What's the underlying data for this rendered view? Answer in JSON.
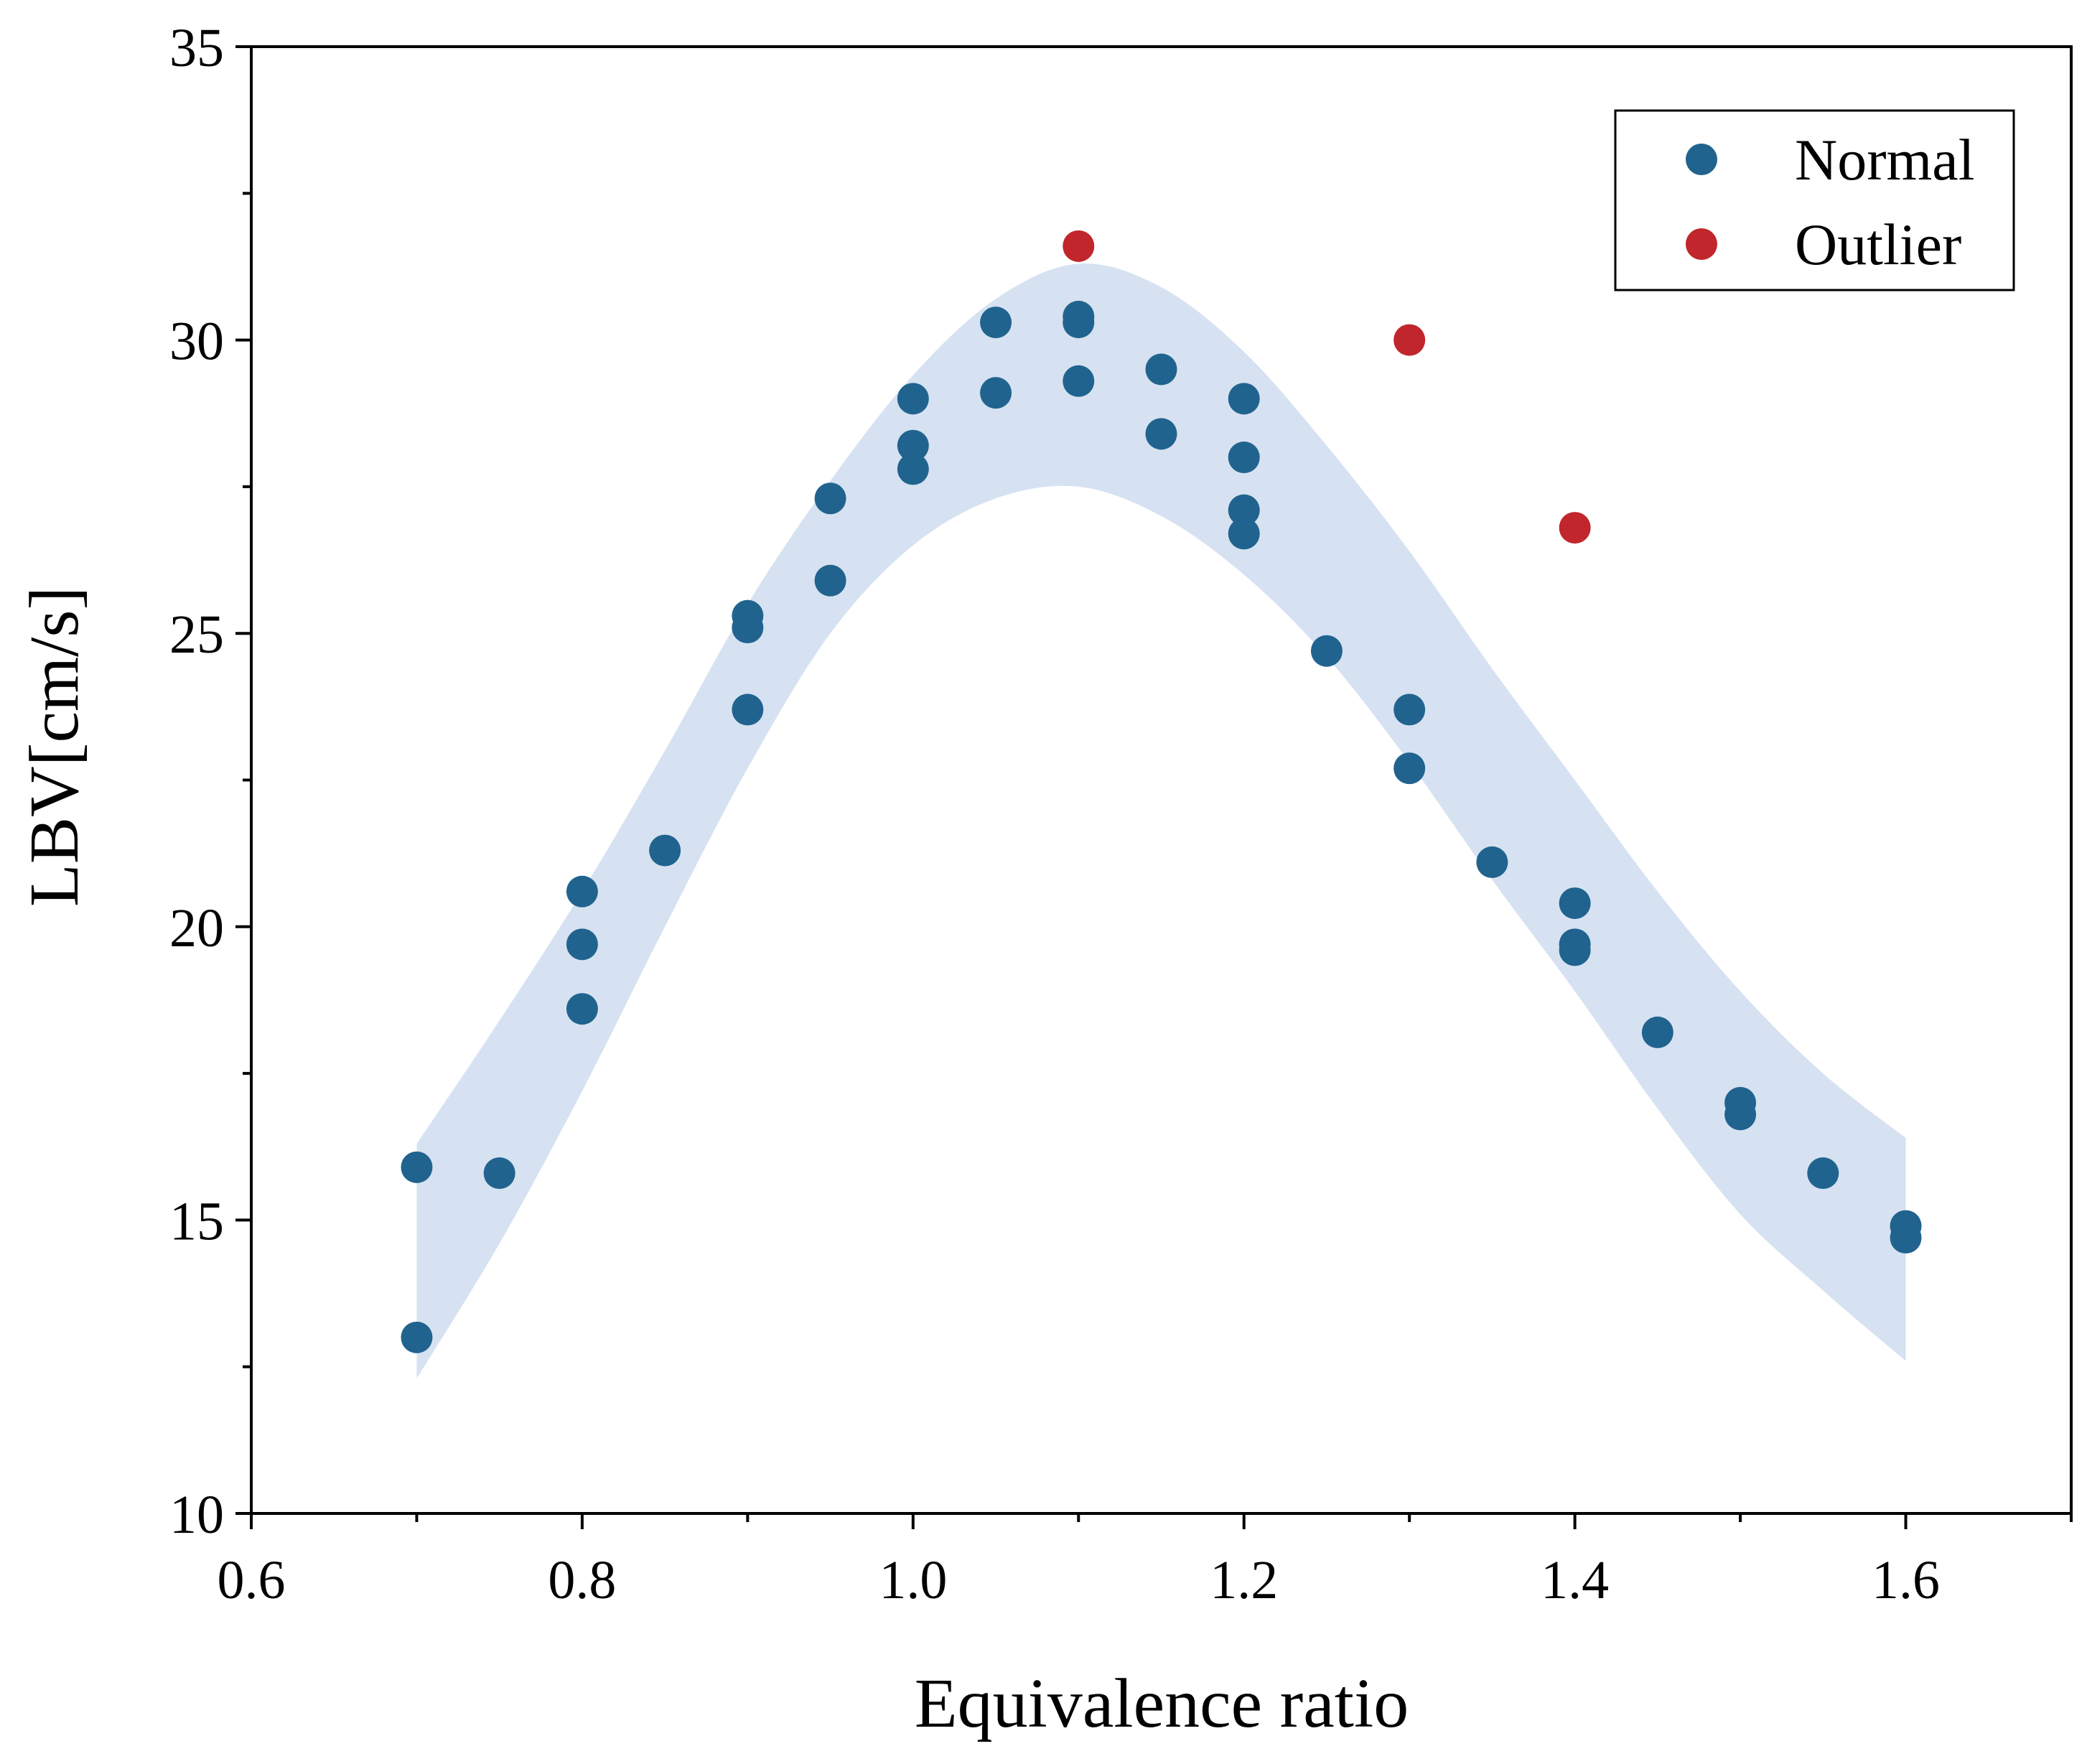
{
  "chart_data": {
    "type": "scatter",
    "title": "",
    "xlabel": "Equivalence ratio",
    "ylabel": "LBV[cm/s]",
    "xlim": [
      0.6,
      1.7
    ],
    "ylim": [
      10,
      35
    ],
    "xticks": [
      0.6,
      0.8,
      1.0,
      1.2,
      1.4,
      1.6
    ],
    "xtick_labels": [
      "0.6",
      "0.8",
      "1.0",
      "1.2",
      "1.4",
      "1.6"
    ],
    "yticks": [
      10,
      15,
      20,
      25,
      30,
      35
    ],
    "ytick_labels": [
      "10",
      "15",
      "20",
      "25",
      "30",
      "35"
    ],
    "grid": false,
    "legend_position": "top-right",
    "colors": {
      "normal": "#21638f",
      "outlier": "#c0262b",
      "band": "#d6e2f1"
    },
    "series": [
      {
        "name": "Normal",
        "color": "#21638f",
        "points": [
          [
            0.7,
            15.9
          ],
          [
            0.7,
            13.0
          ],
          [
            0.75,
            15.8
          ],
          [
            0.8,
            20.6
          ],
          [
            0.8,
            19.7
          ],
          [
            0.8,
            18.6
          ],
          [
            0.85,
            21.3
          ],
          [
            0.9,
            25.3
          ],
          [
            0.9,
            25.1
          ],
          [
            0.9,
            23.7
          ],
          [
            0.95,
            27.3
          ],
          [
            0.95,
            25.9
          ],
          [
            1.0,
            29.0
          ],
          [
            1.0,
            28.2
          ],
          [
            1.0,
            27.8
          ],
          [
            1.05,
            30.3
          ],
          [
            1.05,
            29.1
          ],
          [
            1.1,
            30.4
          ],
          [
            1.1,
            30.3
          ],
          [
            1.1,
            29.3
          ],
          [
            1.15,
            29.5
          ],
          [
            1.15,
            28.4
          ],
          [
            1.2,
            29.0
          ],
          [
            1.2,
            28.0
          ],
          [
            1.2,
            27.1
          ],
          [
            1.2,
            26.7
          ],
          [
            1.25,
            24.7
          ],
          [
            1.3,
            23.7
          ],
          [
            1.3,
            22.7
          ],
          [
            1.35,
            21.1
          ],
          [
            1.4,
            20.4
          ],
          [
            1.4,
            19.7
          ],
          [
            1.4,
            19.6
          ],
          [
            1.45,
            18.2
          ],
          [
            1.5,
            17.0
          ],
          [
            1.5,
            16.8
          ],
          [
            1.55,
            15.8
          ],
          [
            1.6,
            14.9
          ],
          [
            1.6,
            14.7
          ]
        ]
      },
      {
        "name": "Outlier",
        "color": "#c0262b",
        "points": [
          [
            1.1,
            31.6
          ],
          [
            1.3,
            30.0
          ],
          [
            1.4,
            26.8
          ]
        ]
      }
    ],
    "band": {
      "upper": [
        [
          0.7,
          16.3
        ],
        [
          0.75,
          18.4
        ],
        [
          0.8,
          20.6
        ],
        [
          0.85,
          23.0
        ],
        [
          0.9,
          25.5
        ],
        [
          0.95,
          27.6
        ],
        [
          1.0,
          29.4
        ],
        [
          1.05,
          30.7
        ],
        [
          1.1,
          31.3
        ],
        [
          1.15,
          30.9
        ],
        [
          1.2,
          29.8
        ],
        [
          1.25,
          28.2
        ],
        [
          1.3,
          26.4
        ],
        [
          1.35,
          24.4
        ],
        [
          1.4,
          22.5
        ],
        [
          1.45,
          20.6
        ],
        [
          1.5,
          18.9
        ],
        [
          1.55,
          17.5
        ],
        [
          1.6,
          16.4
        ]
      ],
      "lower": [
        [
          0.7,
          12.3
        ],
        [
          0.75,
          14.6
        ],
        [
          0.8,
          17.2
        ],
        [
          0.85,
          20.0
        ],
        [
          0.9,
          22.7
        ],
        [
          0.95,
          25.0
        ],
        [
          1.0,
          26.5
        ],
        [
          1.05,
          27.3
        ],
        [
          1.1,
          27.5
        ],
        [
          1.15,
          27.0
        ],
        [
          1.2,
          26.0
        ],
        [
          1.25,
          24.6
        ],
        [
          1.3,
          22.8
        ],
        [
          1.35,
          20.8
        ],
        [
          1.4,
          18.9
        ],
        [
          1.45,
          16.9
        ],
        [
          1.5,
          15.1
        ],
        [
          1.55,
          13.8
        ],
        [
          1.6,
          12.6
        ]
      ]
    }
  }
}
